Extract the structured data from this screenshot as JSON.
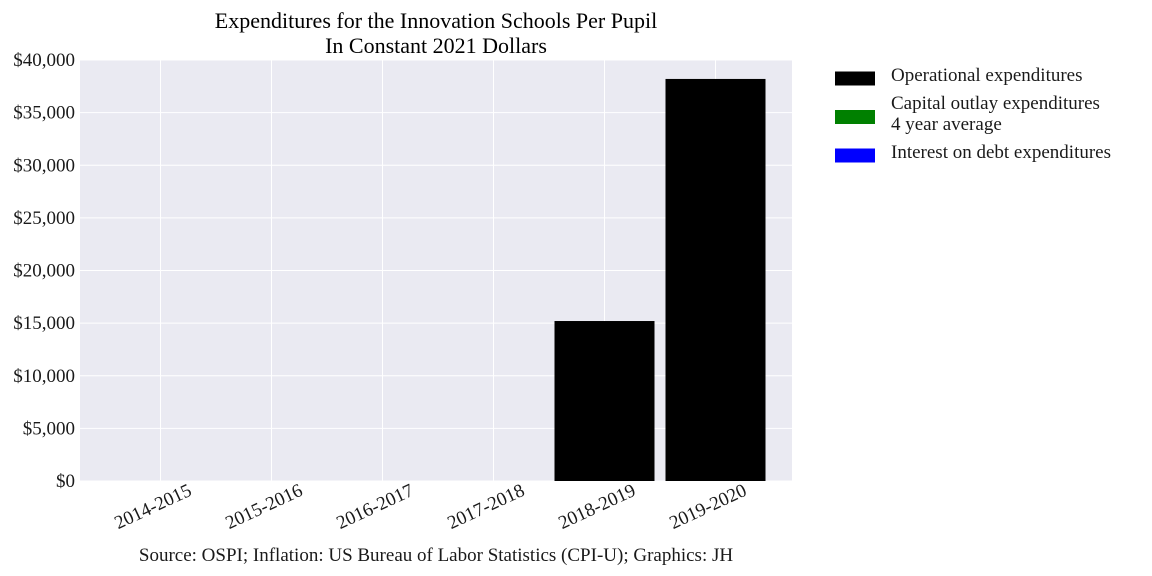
{
  "chart_data": {
    "type": "bar",
    "title": "Expenditures for the Innovation Schools Per Pupil",
    "subtitle": "In Constant 2021 Dollars",
    "categories": [
      "2014-2015",
      "2015-2016",
      "2016-2017",
      "2017-2018",
      "2018-2019",
      "2019-2020"
    ],
    "series": [
      {
        "name": "Operational expenditures",
        "color": "#000000",
        "values": [
          0,
          0,
          0,
          0,
          15200,
          38200
        ]
      },
      {
        "name": "Capital outlay expenditures\n4 year average",
        "color": "#008000",
        "values": [
          0,
          0,
          0,
          0,
          0,
          0
        ]
      },
      {
        "name": "Interest on debt expenditures",
        "color": "#0000ff",
        "values": [
          0,
          0,
          0,
          0,
          0,
          0
        ]
      }
    ],
    "y_ticks": [
      "$0",
      "$5,000",
      "$10,000",
      "$15,000",
      "$20,000",
      "$25,000",
      "$30,000",
      "$35,000",
      "$40,000"
    ],
    "ylim": [
      0,
      40000
    ],
    "grid": true,
    "legend": "right",
    "source": "Source: OSPI; Inflation: US Bureau of Labor Statistics (CPI-U); Graphics: JH"
  }
}
